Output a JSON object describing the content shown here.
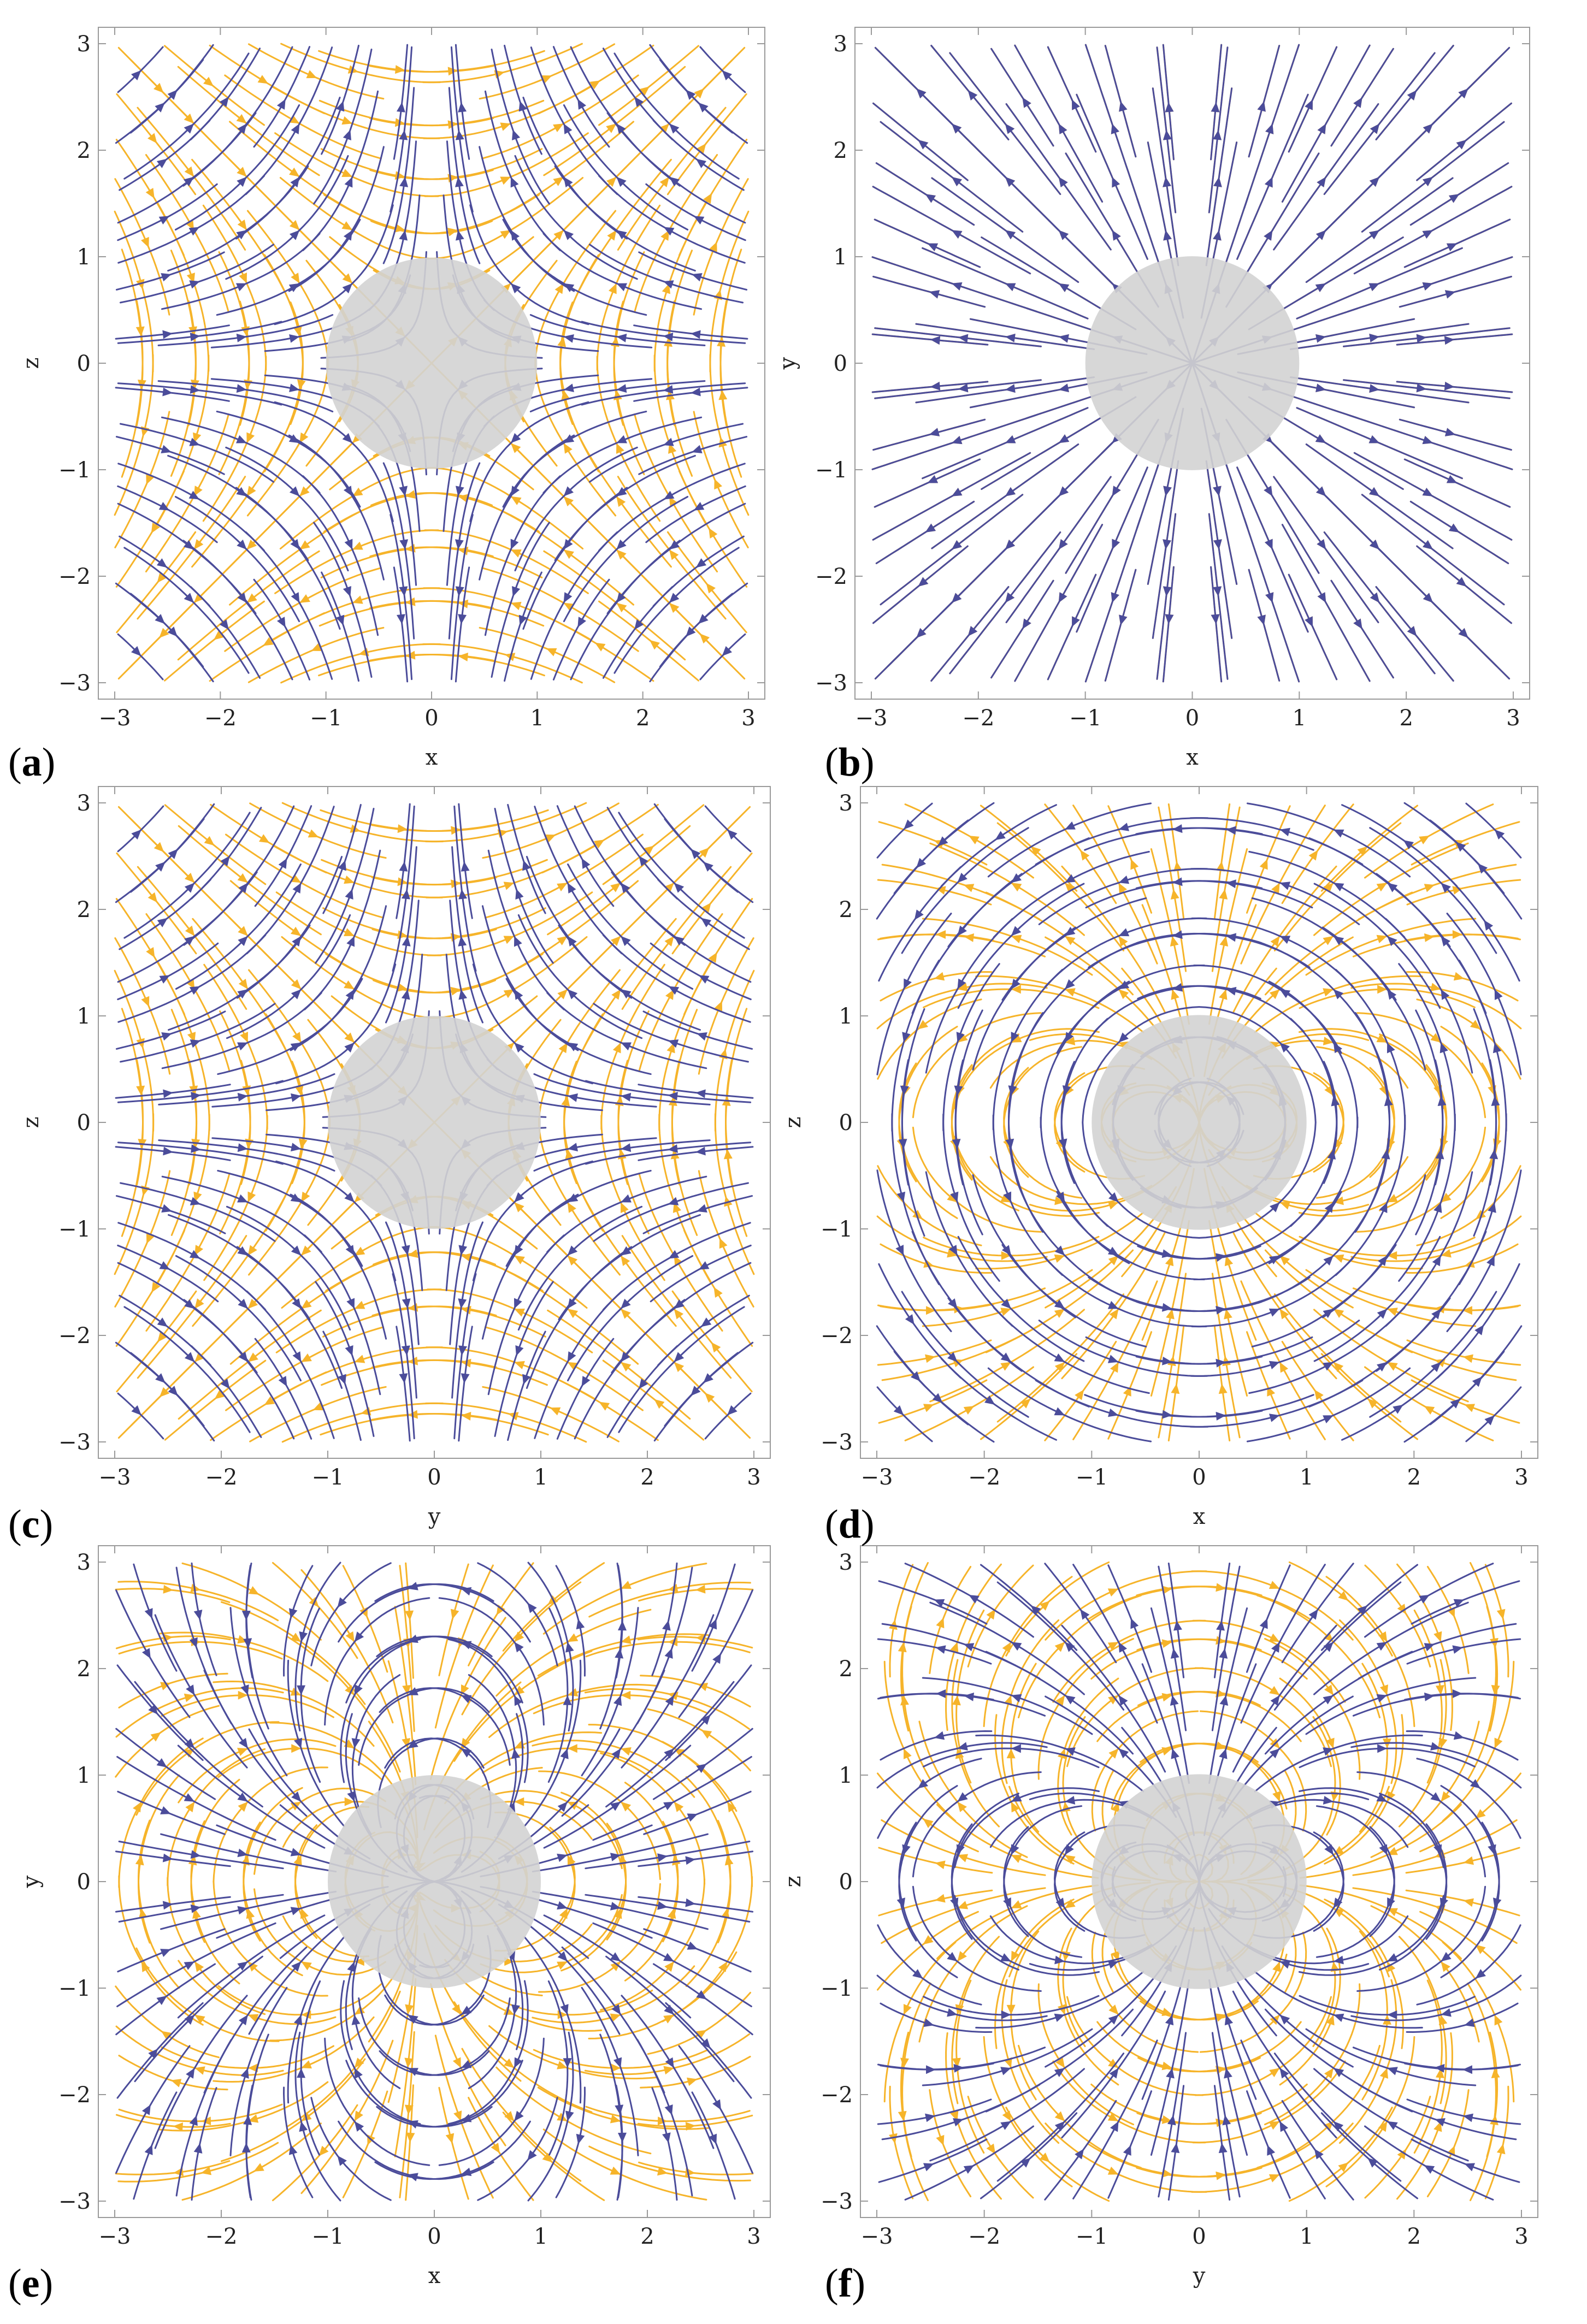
{
  "figure": {
    "colors": {
      "field_a": "#4b4c9a",
      "field_b": "#f6b42a",
      "sphere": "#d3d3d3",
      "frame": "#9a9a9a"
    },
    "panels": [
      {
        "id": "a",
        "label": "(a)",
        "letter": "a",
        "xlabel": "x",
        "ylabel": "z",
        "xrange": [
          -3,
          3
        ],
        "yrange": [
          -3,
          3
        ],
        "xticks": [
          "−3",
          "−2",
          "−1",
          "0",
          "1",
          "2",
          "3"
        ],
        "yticks": [
          "3",
          "2",
          "1",
          "0",
          "−1",
          "−2",
          "−3"
        ],
        "sphere_radius": 1,
        "pattern": "quadrupole-vertical"
      },
      {
        "id": "b",
        "label": "(b)",
        "letter": "b",
        "xlabel": "x",
        "ylabel": "y",
        "xrange": [
          -3,
          3
        ],
        "yrange": [
          -3,
          3
        ],
        "xticks": [
          "−3",
          "−2",
          "−1",
          "0",
          "1",
          "2",
          "3"
        ],
        "yticks": [
          "3",
          "2",
          "1",
          "0",
          "−1",
          "−2",
          "−3"
        ],
        "sphere_radius": 1,
        "pattern": "radial"
      },
      {
        "id": "c",
        "label": "(c)",
        "letter": "c",
        "xlabel": "y",
        "ylabel": "z",
        "xrange": [
          -3,
          3
        ],
        "yrange": [
          -3,
          3
        ],
        "xticks": [
          "−3",
          "−2",
          "−1",
          "0",
          "1",
          "2",
          "3"
        ],
        "yticks": [
          "3",
          "2",
          "1",
          "0",
          "−1",
          "−2",
          "−3"
        ],
        "sphere_radius": 1,
        "pattern": "quadrupole-vertical"
      },
      {
        "id": "d",
        "label": "(d)",
        "letter": "d",
        "xlabel": "x",
        "ylabel": "z",
        "xrange": [
          -3,
          3
        ],
        "yrange": [
          -3,
          3
        ],
        "xticks": [
          "−3",
          "−2",
          "−1",
          "0",
          "1",
          "2",
          "3"
        ],
        "yticks": [
          "3",
          "2",
          "1",
          "0",
          "−1",
          "−2",
          "−3"
        ],
        "sphere_radius": 1,
        "pattern": "circulating"
      },
      {
        "id": "e",
        "label": "(e)",
        "letter": "e",
        "xlabel": "x",
        "ylabel": "y",
        "xrange": [
          -3,
          3
        ],
        "yrange": [
          -3,
          3
        ],
        "xticks": [
          "−3",
          "−2",
          "−1",
          "0",
          "1",
          "2",
          "3"
        ],
        "yticks": [
          "3",
          "2",
          "1",
          "0",
          "−1",
          "−2",
          "−3"
        ],
        "sphere_radius": 1,
        "pattern": "dipole-horizontal"
      },
      {
        "id": "f",
        "label": "(f)",
        "letter": "f",
        "xlabel": "y",
        "ylabel": "z",
        "xrange": [
          -3,
          3
        ],
        "yrange": [
          -3,
          3
        ],
        "xticks": [
          "−3",
          "−2",
          "−1",
          "0",
          "1",
          "2",
          "3"
        ],
        "yticks": [
          "3",
          "2",
          "1",
          "0",
          "−1",
          "−2",
          "−3"
        ],
        "sphere_radius": 1,
        "pattern": "dipole-vertical"
      }
    ]
  }
}
